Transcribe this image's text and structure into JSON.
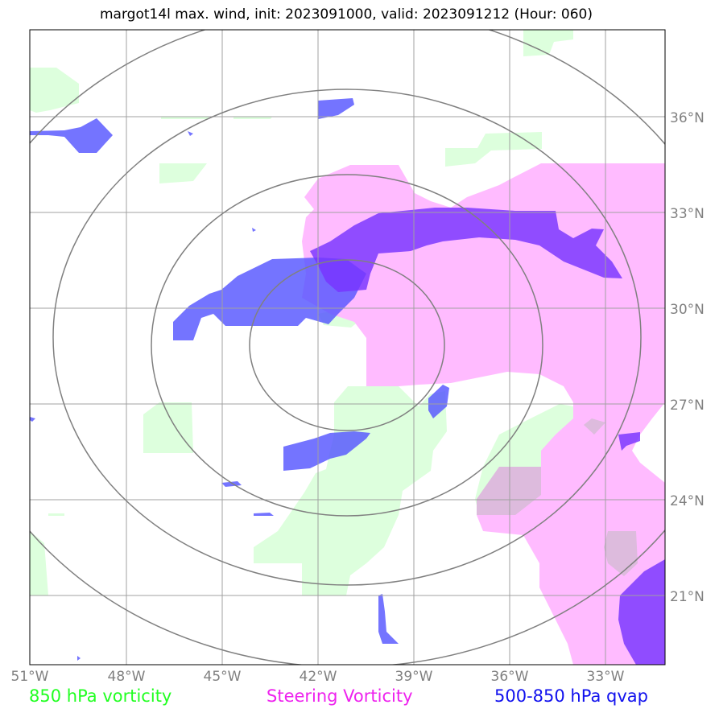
{
  "title": "margot14l max. wind, init: 2023091000, valid: 2023091212 (Hour: 060)",
  "axes": {
    "lon_labels": [
      "51°W",
      "48°W",
      "45°W",
      "42°W",
      "39°W",
      "36°W",
      "33°W"
    ],
    "lat_labels": [
      "36°N",
      "33°N",
      "30°N",
      "27°N",
      "24°N",
      "21°N"
    ]
  },
  "legend": {
    "vort850": {
      "label": "850 hPa vorticity",
      "color": "#22ff22"
    },
    "steering": {
      "label": "Steering Vorticity",
      "color": "#ee22ee"
    },
    "qvap": {
      "label": "500-850 hPa qvap",
      "color": "#1111ee"
    }
  },
  "colors": {
    "vort850_fill": "#ddffdd",
    "steering_fill": "#ffbbff",
    "qvap_fill": "#5555ff",
    "qvap_dense": "#7733ff",
    "grid": "#a0a0a0",
    "rings": "#808080"
  }
}
